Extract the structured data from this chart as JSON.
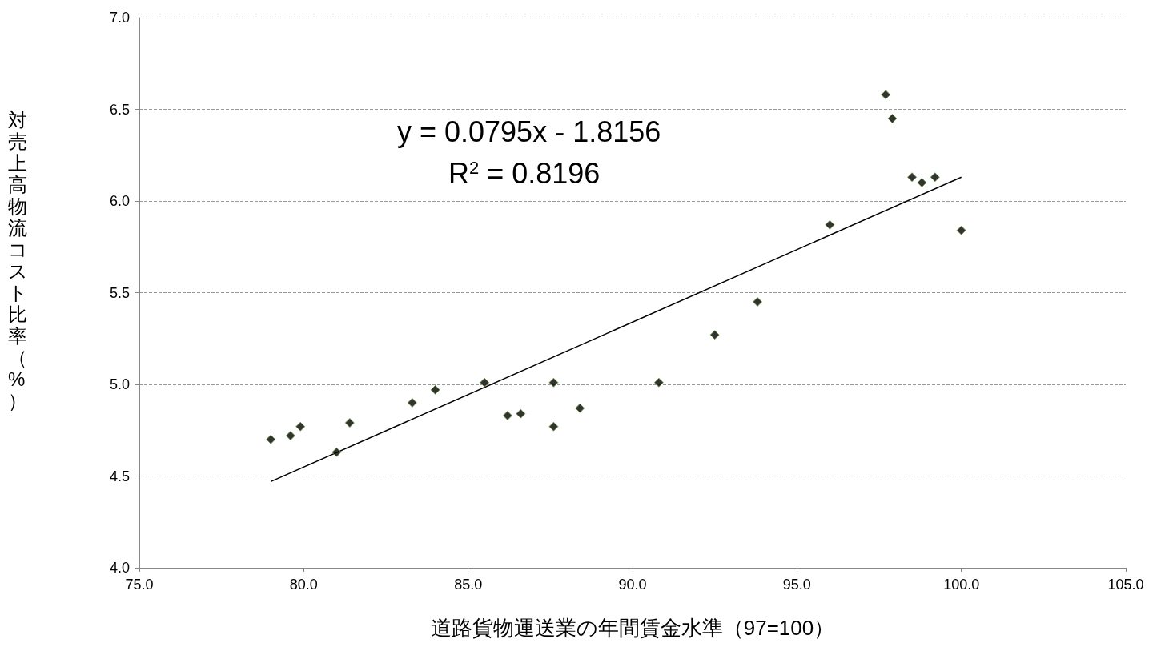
{
  "chart_data": {
    "type": "scatter",
    "xlabel": "道路貨物運送業の年間賃金水準（97=100）",
    "ylabel": "対売上高物流コスト比率（%）",
    "annotations": [
      "y = 0.0795x - 1.8156",
      "R$^{2}$ = 0.8196"
    ],
    "series": [
      {
        "color": "#000000",
        "marker": "diamond",
        "x": [
          79.0,
          79.6,
          79.9,
          81.0,
          81.4,
          83.3,
          84.0,
          85.5,
          86.2,
          86.6,
          87.6,
          87.6,
          88.4,
          90.8,
          92.5,
          93.8,
          96.0,
          97.7,
          97.9,
          98.5,
          98.8,
          99.2,
          100.0
        ],
        "values": [
          4.7,
          4.72,
          4.77,
          4.63,
          4.79,
          4.9,
          4.97,
          5.01,
          4.83,
          4.84,
          5.01,
          4.77,
          4.87,
          5.01,
          5.27,
          5.45,
          5.87,
          6.58,
          6.45,
          6.13,
          6.1,
          6.13,
          5.84
        ]
      },
      {
        "type": "line",
        "color": "#000000",
        "marker": "none",
        "x": [
          79.0,
          100.0
        ],
        "values": [
          4.47,
          6.13
        ]
      }
    ],
    "xlim": [
      75,
      105
    ],
    "xticks": [
      {
        "value": 75,
        "label": "75.0"
      },
      {
        "value": 80,
        "label": "80.0"
      },
      {
        "value": 85,
        "label": "85.0"
      },
      {
        "value": 90,
        "label": "90.0"
      },
      {
        "value": 95,
        "label": "95.0"
      },
      {
        "value": 100,
        "label": "100.0"
      },
      {
        "value": 105,
        "label": "105.0"
      }
    ],
    "ylim": [
      4,
      7
    ],
    "yticks": [
      {
        "value": 4,
        "label": "4.0"
      },
      {
        "value": 4.5,
        "label": "4.5"
      },
      {
        "value": 5,
        "label": "5.0"
      },
      {
        "value": 5.5,
        "label": "5.5"
      },
      {
        "value": 6,
        "label": "6.0"
      },
      {
        "value": 6.5,
        "label": "6.5"
      },
      {
        "value": 7,
        "label": "7.0"
      }
    ],
    "grid": "y"
  }
}
